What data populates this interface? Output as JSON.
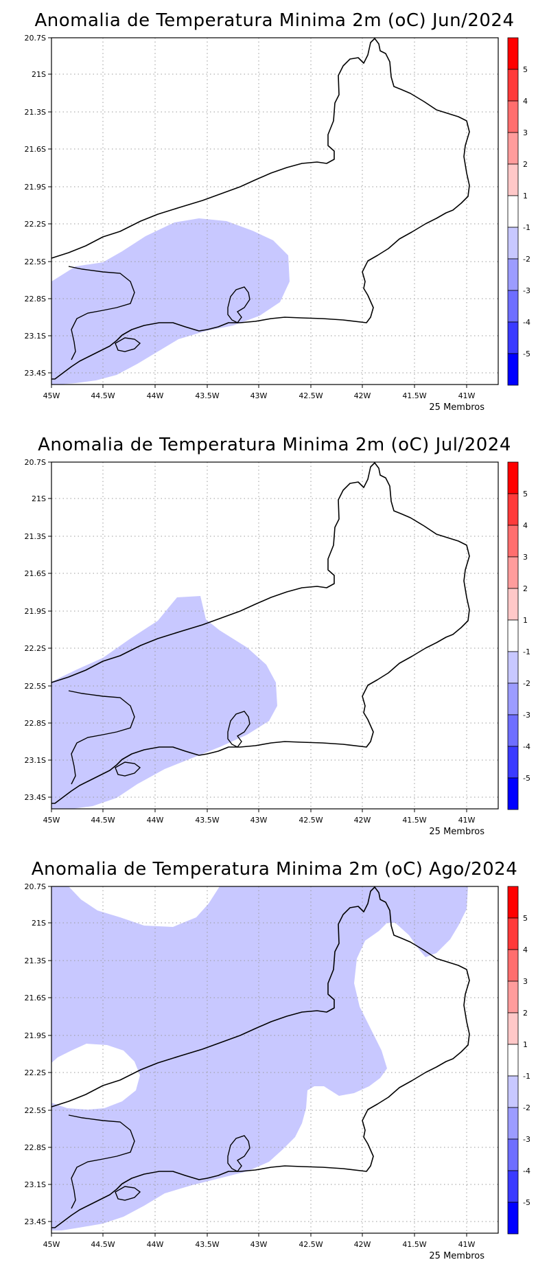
{
  "panels": [
    {
      "title": "Anomalia de Temperatura Minima 2m (oC) Jun/2024",
      "members": "25 Membros",
      "shape": "jun"
    },
    {
      "title": "Anomalia de Temperatura Minima 2m (oC) Jul/2024",
      "members": "25 Membros",
      "shape": "jul"
    },
    {
      "title": "Anomalia de Temperatura Minima 2m (oC) Ago/2024",
      "members": "25 Membros",
      "shape": "ago"
    }
  ],
  "axes": {
    "lat_ticks": [
      "20.7S",
      "21S",
      "21.3S",
      "21.6S",
      "21.9S",
      "22.2S",
      "22.5S",
      "22.8S",
      "23.1S",
      "23.4S"
    ],
    "lon_ticks": [
      "45W",
      "44.5W",
      "44W",
      "43.5W",
      "43W",
      "42.5W",
      "42W",
      "41.5W",
      "41W"
    ]
  },
  "colorbar": {
    "colors": [
      "#ff0000",
      "#ff3a3a",
      "#ff6e6e",
      "#ff9c9c",
      "#ffc8c8",
      "#ffffff",
      "#c8c8ff",
      "#9c9cff",
      "#6e6eff",
      "#3a3aff",
      "#0000ff"
    ],
    "labels": [
      "5",
      "4",
      "3",
      "2",
      "1",
      "-1",
      "-2",
      "-3",
      "-4",
      "-5"
    ]
  },
  "colors": {
    "anomaly_fill": "#c8c8ff",
    "coast": "#000000",
    "grid": "#9a9a9a"
  }
}
